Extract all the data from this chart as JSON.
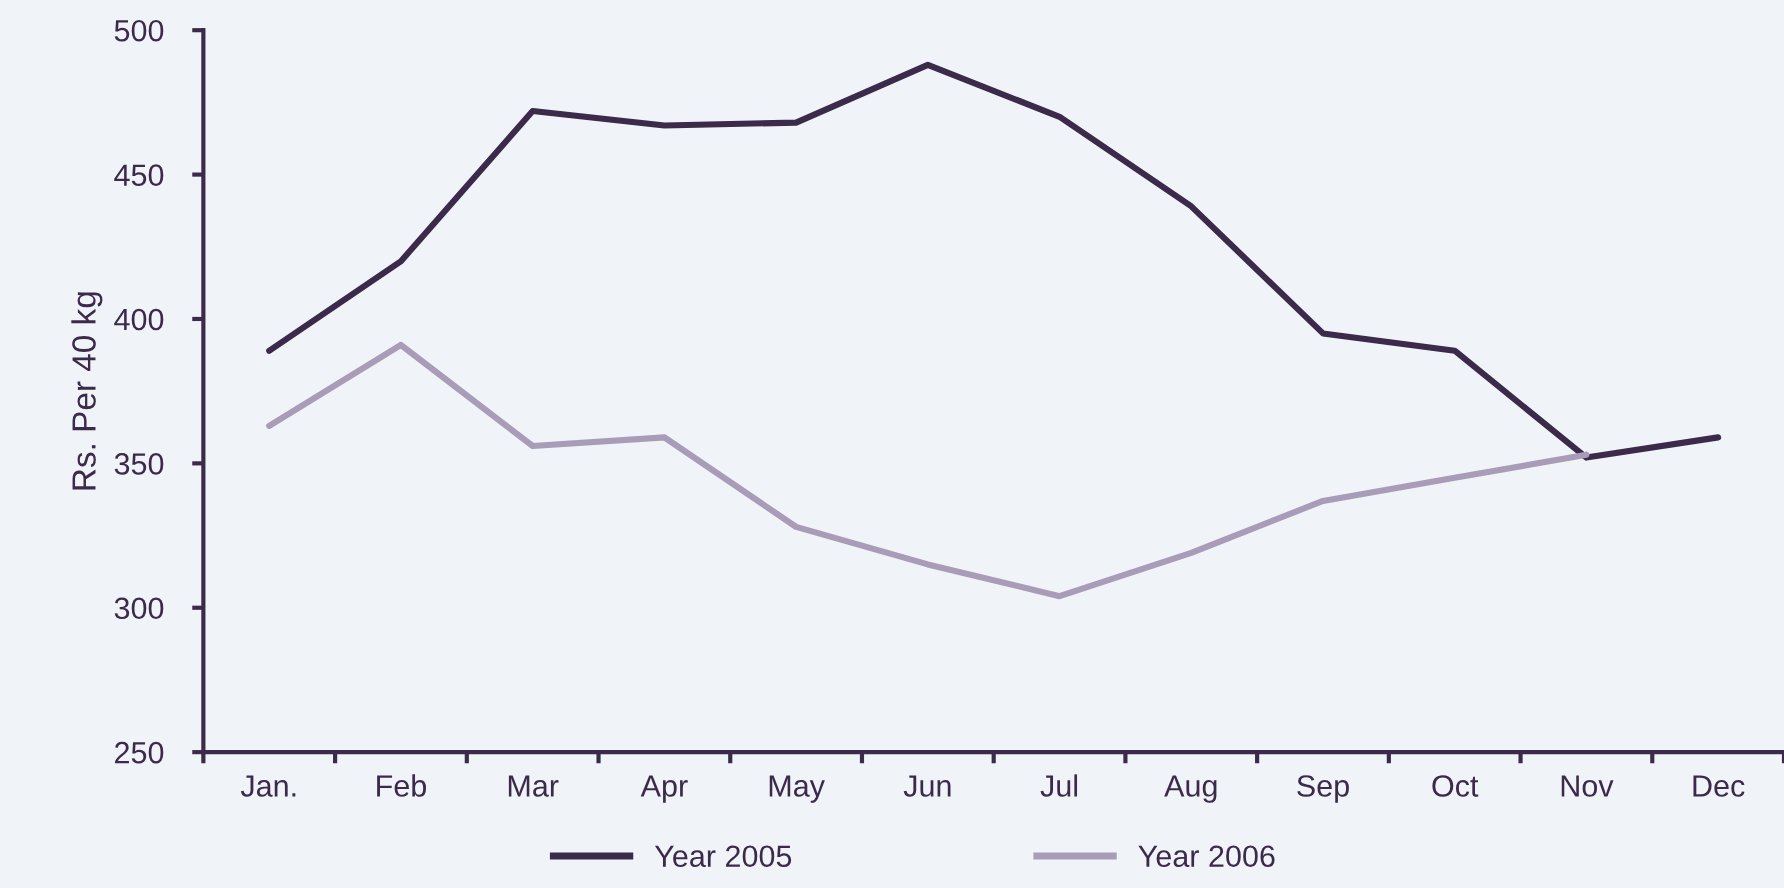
{
  "chart_data": {
    "type": "line",
    "ylabel": "Rs. Per 40 kg",
    "categories": [
      "Jan.",
      "Feb",
      "Mar",
      "Apr",
      "May",
      "Jun",
      "Jul",
      "Aug",
      "Sep",
      "Oct",
      "Nov",
      "Dec"
    ],
    "series": [
      {
        "name": "Year 2005",
        "color": "#3b2a4a",
        "values": [
          389,
          420,
          472,
          467,
          468,
          488,
          470,
          439,
          395,
          389,
          352,
          359
        ]
      },
      {
        "name": "Year 2006",
        "color": "#a89cb8",
        "values": [
          363,
          391,
          356,
          359,
          328,
          315,
          304,
          319,
          337,
          345,
          353,
          null
        ]
      }
    ],
    "ylim": [
      250,
      500
    ],
    "yticks": [
      250,
      300,
      350,
      400,
      450,
      500
    ],
    "grid": false,
    "legend": "bottom",
    "marker": "none",
    "line_style": "solid"
  }
}
